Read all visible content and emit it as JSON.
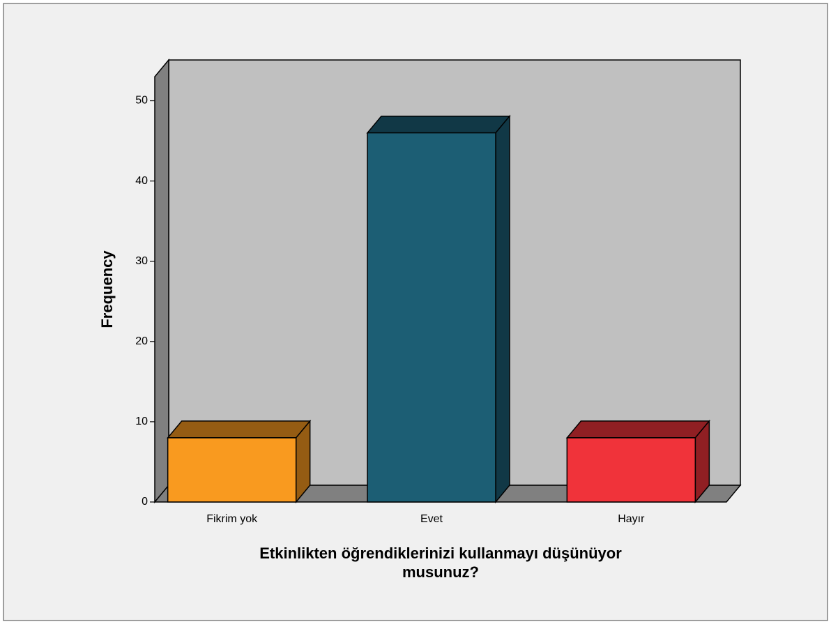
{
  "chart_data": {
    "type": "bar3d",
    "categories": [
      "Fikrim yok",
      "Evet",
      "Hayır"
    ],
    "values": [
      8,
      46,
      8
    ],
    "colors": [
      "#f99a1f",
      "#1c5e74",
      "#f0333a"
    ],
    "y_label": "Frequency",
    "x_label": [
      "Etkinlikten öğrendiklerinizi kullanmayı düşünüyor",
      "musunuz?"
    ],
    "ylim": [
      0,
      53
    ],
    "yticks": [
      0,
      10,
      20,
      30,
      40,
      50
    ],
    "grid": false
  }
}
